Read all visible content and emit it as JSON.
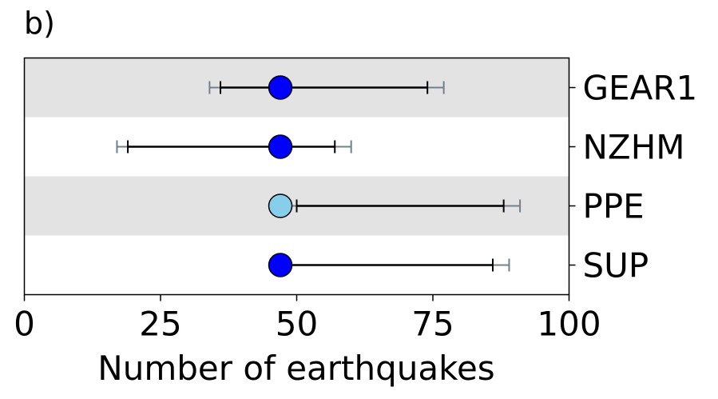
{
  "panel_label": "b)",
  "chart_data": {
    "type": "scatter",
    "title": "",
    "xlabel": "Number of earthquakes",
    "ylabel": "",
    "xlim": [
      0,
      100
    ],
    "xticks": [
      0,
      25,
      50,
      75,
      100
    ],
    "xtick_labels": [
      "0",
      "25",
      "50",
      "75",
      "100"
    ],
    "grid": false,
    "legend": "none",
    "y_tick_side": "right",
    "series": [
      {
        "name": "GEAR1",
        "value": 47,
        "inner_interval": [
          36,
          74
        ],
        "outer_interval": [
          34,
          77
        ],
        "marker_color": "#0000ff",
        "band": true
      },
      {
        "name": "NZHM",
        "value": 47,
        "inner_interval": [
          19,
          57
        ],
        "outer_interval": [
          17,
          60
        ],
        "marker_color": "#0000ff",
        "band": false
      },
      {
        "name": "PPE",
        "value": 47,
        "inner_interval": [
          50,
          88
        ],
        "outer_interval": [
          null,
          91
        ],
        "marker_color": "#87ceeb",
        "band": true
      },
      {
        "name": "SUP",
        "value": 47,
        "inner_interval": [
          null,
          86
        ],
        "outer_interval": [
          null,
          89
        ],
        "marker_color": "#0000ff",
        "band": false
      }
    ],
    "colors": {
      "band": "#e3e3e3",
      "inner_interval": "#000000",
      "outer_interval": "#708090",
      "marker_edge": "#000000"
    }
  }
}
